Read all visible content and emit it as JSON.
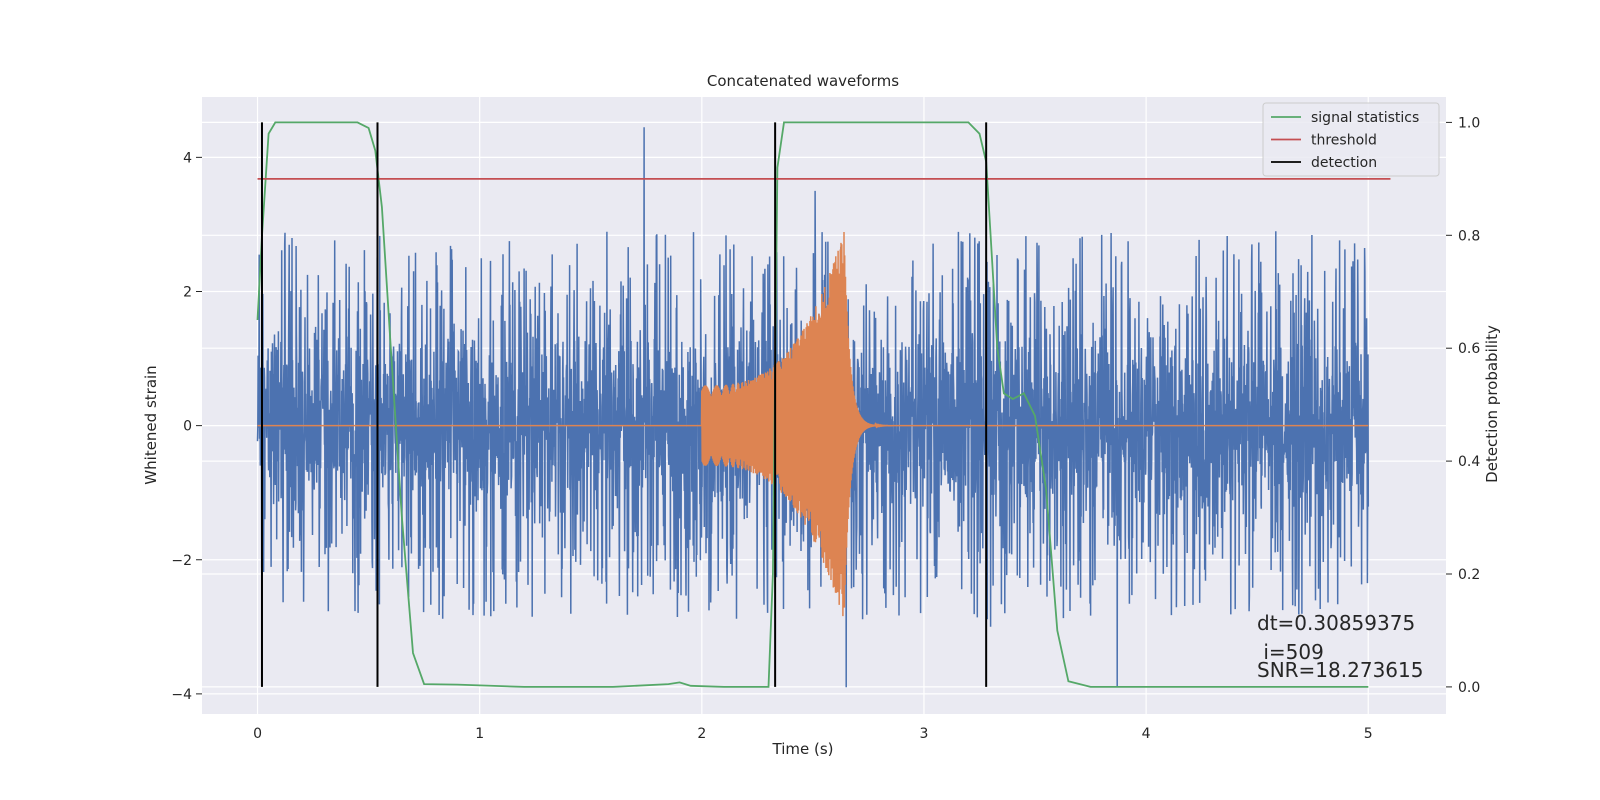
{
  "chart_data": {
    "type": "line",
    "title": "Concatenated waveforms",
    "xlabel": "Time (s)",
    "ylabel": "Whitened strain",
    "y2label": "Detection probability",
    "xlim": [
      -0.25,
      5.35
    ],
    "ylim": [
      -4.3,
      4.9
    ],
    "y2lim": [
      -0.048,
      1.045
    ],
    "x_ticks": [
      0,
      1,
      2,
      3,
      4,
      5
    ],
    "y_ticks": [
      -4,
      -2,
      0,
      2,
      4
    ],
    "y2_ticks": [
      0.0,
      0.2,
      0.4,
      0.6,
      0.8,
      1.0
    ],
    "y2_tick_labels": [
      "0.0",
      "0.2",
      "0.4",
      "0.6",
      "0.8",
      "1.0"
    ],
    "y_tick_labels": [
      "−4",
      "−2",
      "0",
      "2",
      "4"
    ],
    "grid": true,
    "legend_position": "top-right",
    "series": [
      {
        "name": "",
        "axis": "left",
        "color": "#4c72b0",
        "kind": "noise",
        "x_range": [
          0,
          5
        ],
        "typical_amplitude": 1.2,
        "peak_amplitude": 4.5,
        "spikes": [
          {
            "x": 1.74,
            "y": 4.45
          },
          {
            "x": 2.51,
            "y": 3.5
          },
          {
            "x": 2.65,
            "y": -3.9
          },
          {
            "x": 3.87,
            "y": -3.9
          },
          {
            "x": 0.02,
            "y": 2.7
          },
          {
            "x": 3.3,
            "y": -3.0
          }
        ]
      },
      {
        "name": "",
        "axis": "left",
        "color": "#dd8452",
        "kind": "chirp",
        "x_range": [
          0,
          5
        ],
        "chirp_start": 2.0,
        "chirp_merger": 2.64,
        "ringdown_end": 3.0,
        "start_amplitude": 0.6,
        "peak_amplitude": 2.9,
        "min_amplitude": -2.85
      },
      {
        "name": "signal statistics",
        "axis": "right",
        "color": "#55a868",
        "x": [
          0.0,
          0.02,
          0.05,
          0.08,
          0.15,
          0.3,
          0.45,
          0.5,
          0.53,
          0.56,
          0.6,
          0.65,
          0.7,
          0.75,
          0.9,
          1.2,
          1.6,
          1.85,
          1.9,
          1.95,
          2.1,
          2.3,
          2.32,
          2.34,
          2.37,
          2.5,
          3.0,
          3.2,
          3.25,
          3.28,
          3.3,
          3.33,
          3.36,
          3.4,
          3.45,
          3.5,
          3.55,
          3.6,
          3.65,
          3.75,
          4.0,
          5.0
        ],
        "y": [
          0.65,
          0.8,
          0.98,
          1.0,
          1.0,
          1.0,
          1.0,
          0.99,
          0.95,
          0.85,
          0.6,
          0.3,
          0.06,
          0.005,
          0.004,
          0.0,
          0.0,
          0.005,
          0.008,
          0.002,
          0.0,
          0.0,
          0.2,
          0.92,
          1.0,
          1.0,
          1.0,
          1.0,
          0.98,
          0.93,
          0.8,
          0.6,
          0.52,
          0.51,
          0.52,
          0.48,
          0.35,
          0.1,
          0.01,
          0.0,
          0.0,
          0.0
        ]
      },
      {
        "name": "threshold",
        "axis": "right",
        "color": "#c44e52",
        "x": [
          0.0,
          5.1
        ],
        "y": [
          0.9,
          0.9
        ]
      },
      {
        "name": "detection",
        "axis": "right",
        "color": "#000000",
        "vlines": [
          0.02,
          0.54,
          2.33,
          3.28
        ],
        "ymin": 0.0,
        "ymax": 1.0
      }
    ],
    "annotations": [
      "dt=0.30859375",
      " i=509",
      "SNR=18.273615"
    ]
  }
}
